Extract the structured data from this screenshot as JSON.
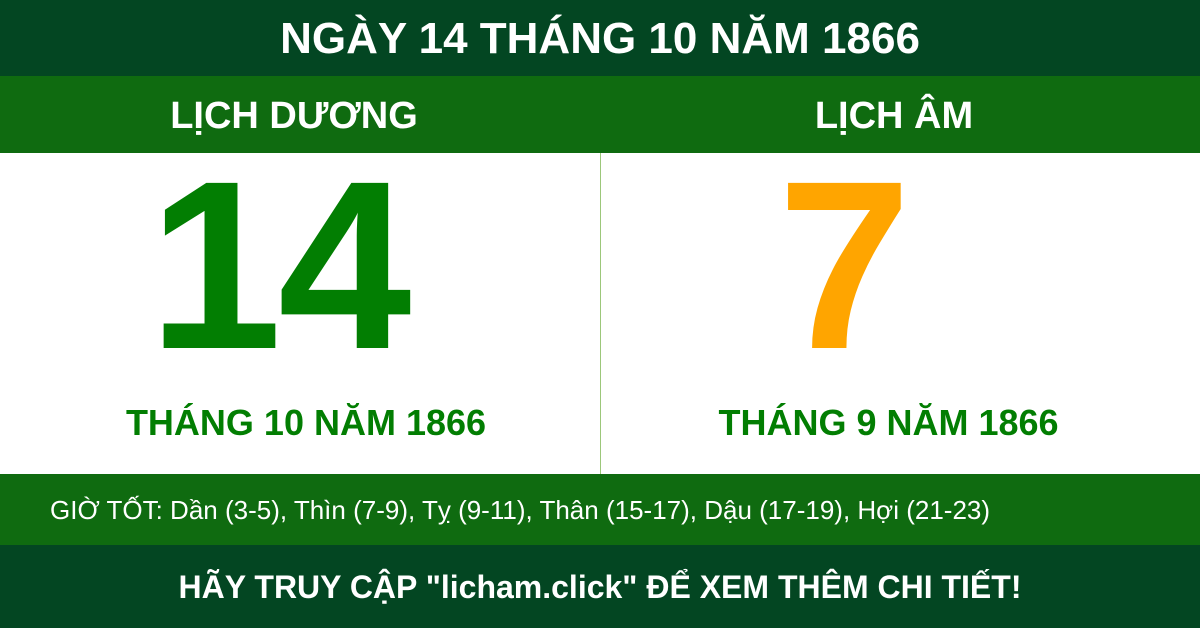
{
  "title": "NGÀY 14 THÁNG 10 NĂM 1866",
  "solar": {
    "label": "LỊCH DƯƠNG",
    "day": "14",
    "month_year": "THÁNG 10 NĂM 1866"
  },
  "lunar": {
    "label": "LỊCH ÂM",
    "day": "7",
    "month_year": "THÁNG 9 NĂM 1866"
  },
  "good_hours": "GIỜ TỐT: Dần (3-5), Thìn (7-9), Tỵ (9-11), Thân (15-17), Dậu (17-19), Hợi (21-23)",
  "footer": "HÃY TRUY CẬP \"licham.click\" ĐỂ XEM THÊM CHI TIẾT!",
  "colors": {
    "dark_green": "#034622",
    "green": "#0f6b10",
    "solar_number": "#027e02",
    "lunar_number": "#ffa500"
  }
}
